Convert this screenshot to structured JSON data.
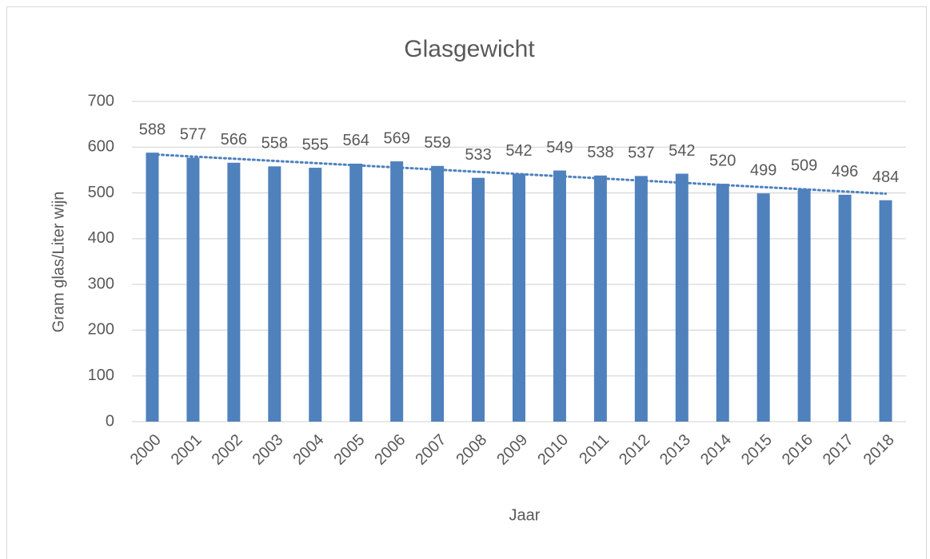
{
  "chart_data": {
    "type": "bar",
    "title": "Glasgewicht",
    "x_label": "Jaar",
    "y_label": "Gram glas/Liter wijn",
    "categories": [
      "2000",
      "2001",
      "2002",
      "2003",
      "2004",
      "2005",
      "2006",
      "2007",
      "2008",
      "2009",
      "2010",
      "2011",
      "2012",
      "2013",
      "2014",
      "2015",
      "2016",
      "2017",
      "2018"
    ],
    "values": [
      588,
      577,
      566,
      558,
      555,
      564,
      569,
      559,
      533,
      542,
      549,
      538,
      537,
      542,
      520,
      499,
      509,
      496,
      484
    ],
    "color": "#4f81bd",
    "ylim": [
      0,
      700
    ],
    "yticks": [
      0,
      100,
      200,
      300,
      400,
      500,
      600,
      700
    ],
    "grid": true,
    "trendline": "linear"
  }
}
